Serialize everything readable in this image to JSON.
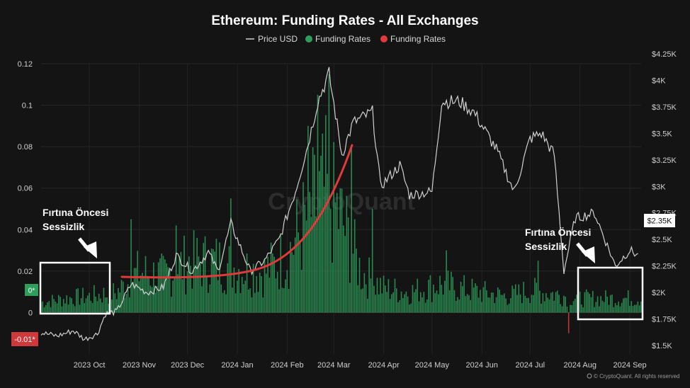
{
  "chart_data": {
    "type": "bar+line",
    "title": "Ethereum: Funding Rates - All Exchanges",
    "legend": [
      {
        "name": "Price USD",
        "color": "#d0d0d0",
        "marker": "line"
      },
      {
        "name": "Funding Rates",
        "color": "#2e9e5b",
        "marker": "dot"
      },
      {
        "name": "Funding Rates",
        "color": "#e03a3a",
        "marker": "dot"
      }
    ],
    "x_ticks": [
      "2023 Oct",
      "2023 Nov",
      "2023 Dec",
      "2024 Jan",
      "2024 Feb",
      "2024 Mar",
      "2024 Apr",
      "2024 May",
      "2024 Jun",
      "2024 Jul",
      "2024 Aug",
      "2024 Sep"
    ],
    "y_left": {
      "ticks": [
        "0.12",
        "0.1",
        "0.08",
        "0.06",
        "0.04",
        "0.02",
        "0"
      ],
      "ylim": [
        -0.02,
        0.12
      ]
    },
    "y_right": {
      "ticks": [
        "$4.25K",
        "$4K",
        "$3.75K",
        "$3.5K",
        "$3.25K",
        "$3K",
        "$2.75K",
        "$2.5K",
        "$2.25K",
        "$2K",
        "$1.75K",
        "$1.5K"
      ],
      "ylim": [
        1500,
        4250
      ]
    },
    "badges": {
      "zero": "0*",
      "min": "-0.01*",
      "price": "$2.35K"
    },
    "colors": {
      "positive": "#2e9e5b",
      "negative": "#e03a3a",
      "price": "#d0d0d0",
      "highlight": "#ffffff",
      "trend": "#e03a3a"
    },
    "annotations": [
      {
        "line1": "Fırtına Öncesi",
        "line2": "Sessizlik"
      },
      {
        "line1": "Fırtına Öncesi",
        "line2": "Sessizlik"
      }
    ],
    "funding_anchors": [
      [
        "2023-09-15",
        0.005
      ],
      [
        "2023-10-01",
        0.007
      ],
      [
        "2023-10-15",
        0.008
      ],
      [
        "2023-11-01",
        0.01
      ],
      [
        "2023-11-15",
        0.02
      ],
      [
        "2023-12-01",
        0.018
      ],
      [
        "2023-12-15",
        0.025
      ],
      [
        "2024-01-01",
        0.025
      ],
      [
        "2024-01-15",
        0.022
      ],
      [
        "2024-02-01",
        0.02
      ],
      [
        "2024-02-15",
        0.028
      ],
      [
        "2024-03-01",
        0.05
      ],
      [
        "2024-03-10",
        0.06
      ],
      [
        "2024-03-20",
        0.045
      ],
      [
        "2024-04-01",
        0.02
      ],
      [
        "2024-04-15",
        0.012
      ],
      [
        "2024-05-01",
        0.01
      ],
      [
        "2024-05-20",
        0.014
      ],
      [
        "2024-06-01",
        0.012
      ],
      [
        "2024-06-15",
        0.01
      ],
      [
        "2024-07-01",
        0.008
      ],
      [
        "2024-07-15",
        0.011
      ],
      [
        "2024-08-01",
        0.009
      ],
      [
        "2024-08-15",
        0.007
      ],
      [
        "2024-09-01",
        0.007
      ],
      [
        "2024-09-20",
        0.007
      ]
    ],
    "funding_spikes": [
      [
        "2023-11-10",
        0.045
      ],
      [
        "2023-12-08",
        0.042
      ],
      [
        "2024-01-11",
        0.055
      ],
      [
        "2024-02-28",
        0.09
      ],
      [
        "2024-03-05",
        0.105
      ],
      [
        "2024-03-12",
        0.115
      ],
      [
        "2024-03-26",
        0.08
      ],
      [
        "2024-04-08",
        0.05
      ],
      [
        "2024-05-24",
        0.03
      ],
      [
        "2024-07-20",
        0.025
      ],
      [
        "2024-08-08",
        -0.01
      ]
    ],
    "price_points": [
      [
        "2023-09-15",
        1620
      ],
      [
        "2023-09-25",
        1590
      ],
      [
        "2023-10-05",
        1640
      ],
      [
        "2023-10-12",
        1560
      ],
      [
        "2023-10-20",
        1610
      ],
      [
        "2023-10-25",
        1800
      ],
      [
        "2023-11-01",
        1820
      ],
      [
        "2023-11-10",
        2080
      ],
      [
        "2023-11-20",
        2000
      ],
      [
        "2023-11-30",
        2050
      ],
      [
        "2023-12-08",
        2350
      ],
      [
        "2023-12-18",
        2200
      ],
      [
        "2023-12-28",
        2380
      ],
      [
        "2024-01-03",
        2200
      ],
      [
        "2024-01-11",
        2650
      ],
      [
        "2024-01-23",
        2200
      ],
      [
        "2024-02-01",
        2300
      ],
      [
        "2024-02-10",
        2500
      ],
      [
        "2024-02-20",
        2950
      ],
      [
        "2024-02-28",
        3400
      ],
      [
        "2024-03-05",
        3800
      ],
      [
        "2024-03-12",
        4060
      ],
      [
        "2024-03-20",
        3300
      ],
      [
        "2024-03-27",
        3600
      ],
      [
        "2024-04-08",
        3700
      ],
      [
        "2024-04-13",
        3000
      ],
      [
        "2024-04-25",
        3200
      ],
      [
        "2024-05-01",
        2920
      ],
      [
        "2024-05-15",
        2950
      ],
      [
        "2024-05-21",
        3800
      ],
      [
        "2024-06-01",
        3800
      ],
      [
        "2024-06-10",
        3700
      ],
      [
        "2024-06-24",
        3350
      ],
      [
        "2024-07-05",
        2950
      ],
      [
        "2024-07-15",
        3450
      ],
      [
        "2024-07-22",
        3500
      ],
      [
        "2024-07-30",
        3300
      ],
      [
        "2024-08-05",
        2200
      ],
      [
        "2024-08-12",
        2700
      ],
      [
        "2024-08-24",
        2750
      ],
      [
        "2024-09-06",
        2250
      ],
      [
        "2024-09-15",
        2400
      ],
      [
        "2024-09-20",
        2350
      ]
    ]
  }
}
